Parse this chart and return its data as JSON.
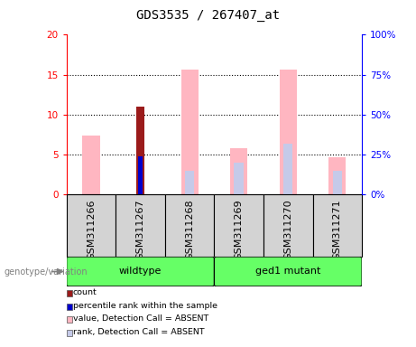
{
  "title": "GDS3535 / 267407_at",
  "samples": [
    "GSM311266",
    "GSM311267",
    "GSM311268",
    "GSM311269",
    "GSM311270",
    "GSM311271"
  ],
  "ylim_left": [
    0,
    20
  ],
  "ylim_right": [
    0,
    100
  ],
  "yticks_left": [
    0,
    5,
    10,
    15,
    20
  ],
  "yticks_right": [
    0,
    25,
    50,
    75,
    100
  ],
  "ytick_labels_left": [
    "0",
    "5",
    "10",
    "15",
    "20"
  ],
  "ytick_labels_right": [
    "0%",
    "25%",
    "50%",
    "75%",
    "100%"
  ],
  "count_bars": {
    "values": [
      0,
      11,
      0,
      0,
      0,
      0
    ],
    "color": "#9B1B1B"
  },
  "percentile_bars": {
    "values": [
      0,
      24,
      0,
      0,
      0,
      0
    ],
    "color": "#0000CD"
  },
  "value_absent_bars": {
    "values": [
      37,
      0,
      78,
      29,
      78,
      23
    ],
    "color": "#FFB6C1"
  },
  "rank_absent_bars": {
    "values": [
      0,
      0,
      15,
      20,
      32,
      15
    ],
    "color": "#C5CAE9"
  },
  "wildtype_samples": [
    0,
    1,
    2
  ],
  "ged1_samples": [
    3,
    4,
    5
  ],
  "bar_width": 0.35,
  "background_color": "#ffffff",
  "plot_bg_color": "#ffffff",
  "label_area_color": "#d3d3d3",
  "group_area_color": "#66FF66",
  "title_fontsize": 10,
  "tick_fontsize": 7.5,
  "label_fontsize": 8,
  "legend_items": [
    {
      "label": "count",
      "color": "#9B1B1B"
    },
    {
      "label": "percentile rank within the sample",
      "color": "#0000CD"
    },
    {
      "label": "value, Detection Call = ABSENT",
      "color": "#FFB6C1"
    },
    {
      "label": "rank, Detection Call = ABSENT",
      "color": "#C5CAE9"
    }
  ]
}
